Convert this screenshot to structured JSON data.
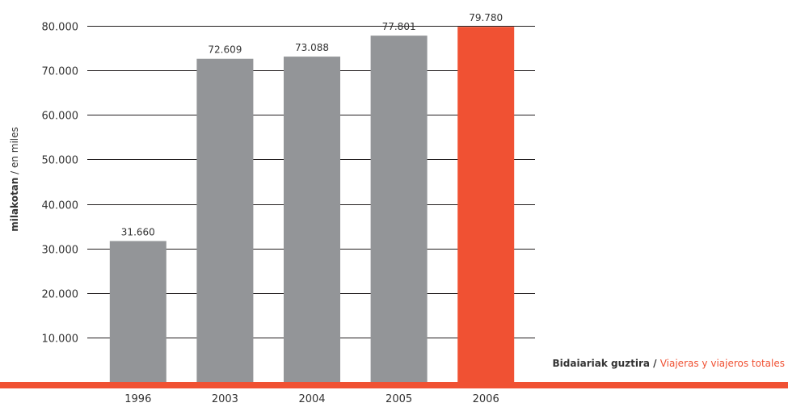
{
  "chart_data": {
    "type": "bar",
    "categories": [
      "1996",
      "2003",
      "2004",
      "2005",
      "2006"
    ],
    "values": [
      31660,
      72609,
      73088,
      77801,
      79780
    ],
    "value_labels": [
      "31.660",
      "72.609",
      "73.088",
      "77.801",
      "79.780"
    ],
    "y_ticks": [
      10000,
      20000,
      30000,
      40000,
      50000,
      60000,
      70000,
      80000
    ],
    "y_tick_labels": [
      "10.000",
      "20.000",
      "30.000",
      "40.000",
      "50.000",
      "60.000",
      "70.000",
      "80.000"
    ],
    "ylim": [
      0,
      80000
    ],
    "ylabel_bold": "milakotan",
    "ylabel_light": " / en miles",
    "grid": true,
    "colors": {
      "bar": "#939598",
      "highlight": "#f05133",
      "grid": "#231f20",
      "accent_text": "#f05133"
    },
    "highlight_index": 4,
    "legend": {
      "bold": "Bidaiariak guztira",
      "separator": " / ",
      "accent": "Viajeras y viajeros totales"
    }
  }
}
